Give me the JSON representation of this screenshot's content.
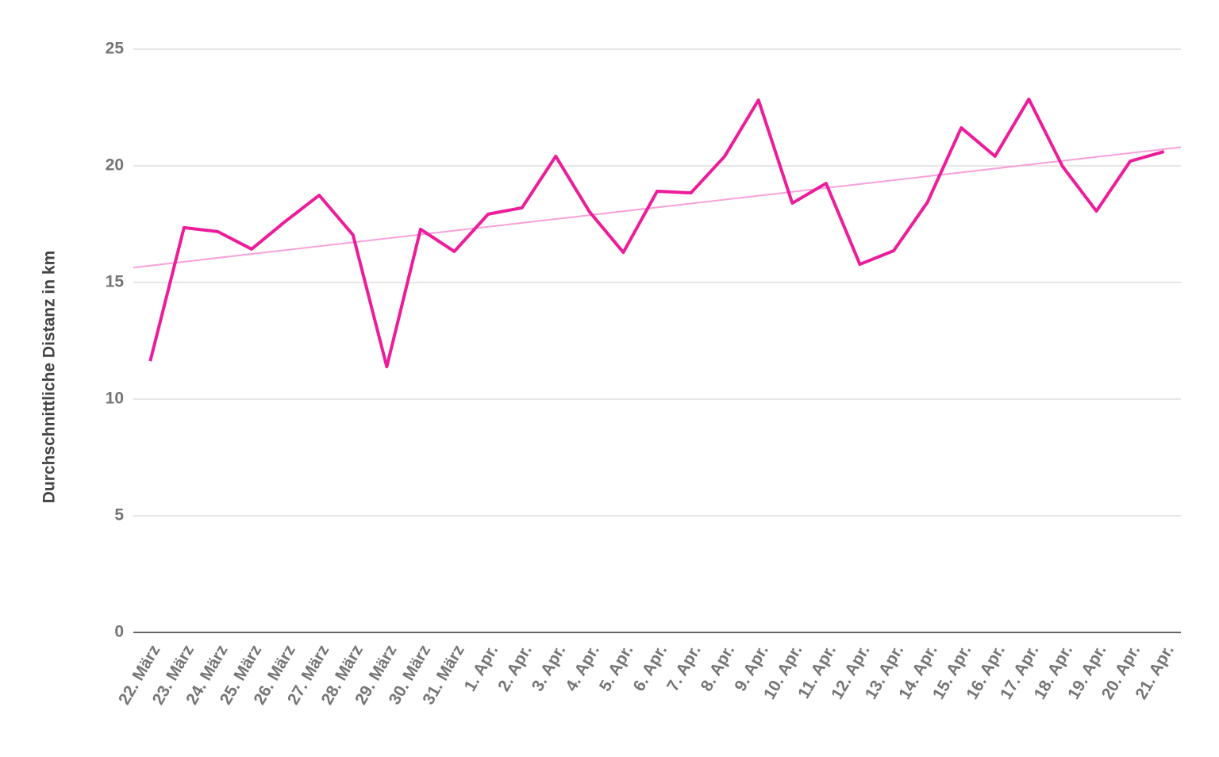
{
  "chart_data": {
    "type": "line",
    "y_label": "Durchschnittliche Distanz in km",
    "categories": [
      "22. März",
      "23. März",
      "24. März",
      "25. März",
      "26. März",
      "27. März",
      "28. März",
      "29. März",
      "30. März",
      "31. März",
      "1. Apr.",
      "2. Apr.",
      "3. Apr.",
      "4. Apr.",
      "5. Apr.",
      "6. Apr.",
      "7. Apr.",
      "8. Apr.",
      "9. Apr.",
      "10. Apr.",
      "11. Apr.",
      "12. Apr.",
      "13. Apr.",
      "14. Apr.",
      "15. Apr.",
      "16. Apr.",
      "17. Apr.",
      "18. Apr.",
      "19. Apr.",
      "20. Apr.",
      "21. Apr."
    ],
    "values": [
      11.63,
      17.35,
      17.18,
      16.43,
      17.62,
      18.74,
      17.04,
      11.39,
      17.28,
      16.33,
      17.93,
      18.2,
      20.41,
      18.03,
      16.29,
      18.91,
      18.84,
      20.41,
      22.82,
      18.4,
      19.25,
      15.78,
      16.36,
      18.44,
      21.63,
      20.41,
      22.86,
      19.97,
      18.06,
      20.2,
      20.61
    ],
    "color": "#ec1c9a",
    "trendline": {
      "color": "#f7a1d9"
    },
    "ylim": [
      0,
      25
    ],
    "yticks": [
      0,
      5,
      10,
      15,
      20,
      25
    ],
    "grid": true
  }
}
